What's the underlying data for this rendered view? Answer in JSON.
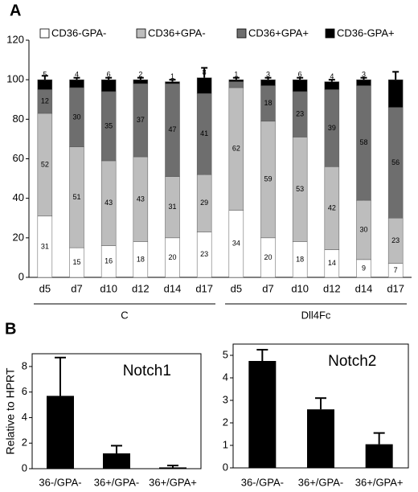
{
  "panel_labels": [
    "A",
    "B"
  ],
  "chart_data": [
    {
      "type": "stacked_bar",
      "categories": [
        "d5",
        "d7",
        "d10",
        "d12",
        "d14",
        "d17",
        "d5",
        "d7",
        "d10",
        "d12",
        "d14",
        "d17"
      ],
      "groups": [
        "C",
        "Dll4Fc"
      ],
      "ylim": [
        0,
        120
      ],
      "yticks": [
        0,
        20,
        40,
        60,
        80,
        100,
        120
      ],
      "series": [
        {
          "name": "CD36-GPA-",
          "color": "#ffffff",
          "error_color": "#000000",
          "values": [
            31,
            15,
            16,
            18,
            20,
            23,
            34,
            20,
            18,
            14,
            9,
            7
          ],
          "errors": [
            7,
            3,
            2,
            2,
            4,
            5,
            6,
            4,
            1,
            1,
            2,
            2
          ]
        },
        {
          "name": "CD36+GPA-",
          "color": "#bdbdbd",
          "error_color": "#ffffff",
          "values": [
            52,
            51,
            43,
            43,
            31,
            29,
            62,
            59,
            53,
            42,
            30,
            23
          ],
          "errors": [
            5,
            7,
            7,
            7,
            8,
            9,
            2,
            5,
            10,
            5,
            6,
            4
          ]
        },
        {
          "name": "CD36+GPA+",
          "color": "#6e6e6e",
          "error_color": "#000000",
          "values": [
            12,
            30,
            35,
            37,
            47,
            41,
            3,
            18,
            23,
            39,
            58,
            56
          ],
          "value_labels": [
            "12",
            "30",
            "35",
            "37",
            "47",
            "41",
            null,
            "18",
            "23",
            "39",
            "58",
            "56"
          ]
        },
        {
          "name": "CD36-GPA+",
          "color": "#000000",
          "error_color": "#000000",
          "values": [
            5,
            4,
            6,
            2,
            1,
            8,
            1,
            3,
            6,
            4,
            3,
            14
          ],
          "errors": [
            2,
            1,
            1,
            1,
            1,
            5,
            1,
            1,
            1,
            1,
            1,
            4
          ]
        }
      ]
    },
    {
      "type": "bar",
      "title": "Notch1",
      "ylabel": "Relative to HPRT",
      "categories": [
        "36-/GPA-",
        "36+/GPA-",
        "36+/GPA+"
      ],
      "values": [
        5.7,
        1.2,
        0.1
      ],
      "errors": [
        3.0,
        0.6,
        0.15
      ],
      "color": "#000000",
      "ylim": [
        0,
        9
      ],
      "yticks": [
        0,
        2,
        4,
        6,
        8
      ]
    },
    {
      "type": "bar",
      "title": "Notch2",
      "categories": [
        "36-/GPA-",
        "36+/GPA-",
        "36+/GPA+"
      ],
      "values": [
        4.75,
        2.6,
        1.05
      ],
      "errors": [
        0.5,
        0.5,
        0.5
      ],
      "color": "#000000",
      "ylim": [
        0,
        5.5
      ],
      "yticks": [
        0,
        1,
        2,
        3,
        4,
        5
      ]
    }
  ]
}
